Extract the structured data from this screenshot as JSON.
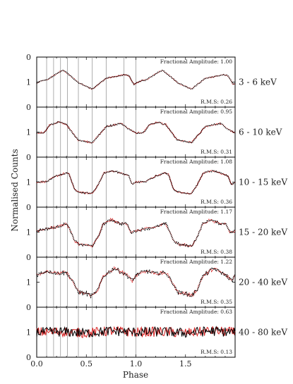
{
  "chart_data": {
    "type": "line",
    "xlabel": "Phase",
    "ylabel": "Normalised Counts",
    "xlim": [
      0,
      2
    ],
    "ylim": [
      0,
      2
    ],
    "x_ticks": [
      "0.0",
      "0.5",
      "1.0",
      "1.5"
    ],
    "y_ticks": [
      "0",
      "1"
    ],
    "reference_phases": [
      0.1,
      0.17,
      0.24,
      0.31,
      0.42,
      0.56,
      0.7,
      0.88,
      1.0
    ],
    "series_colors": {
      "black": "#000000",
      "red": "#d62020"
    },
    "panels": [
      {
        "band": "3 - 6 keV",
        "fractional_amplitude": "Fractional Amplitude: 1.00",
        "rms": "R.M.S: 0.26",
        "shape": [
          [
            0,
            0.95
          ],
          [
            0.05,
            1.05
          ],
          [
            0.1,
            1.08
          ],
          [
            0.17,
            1.25
          ],
          [
            0.24,
            1.43
          ],
          [
            0.27,
            1.47
          ],
          [
            0.3,
            1.38
          ],
          [
            0.42,
            0.98
          ],
          [
            0.56,
            0.72
          ],
          [
            0.7,
            1.15
          ],
          [
            0.88,
            1.29
          ],
          [
            0.93,
            1.25
          ],
          [
            0.98,
            0.9
          ],
          [
            1.0,
            0.95
          ]
        ],
        "noise": 0.02
      },
      {
        "band": "6 - 10 keV",
        "fractional_amplitude": "Fractional Amplitude: 0.95",
        "rms": "R.M.S: 0.31",
        "shape": [
          [
            0,
            0.95
          ],
          [
            0.08,
            1.0
          ],
          [
            0.13,
            1.28
          ],
          [
            0.22,
            1.4
          ],
          [
            0.3,
            1.3
          ],
          [
            0.36,
            0.98
          ],
          [
            0.42,
            0.68
          ],
          [
            0.56,
            0.58
          ],
          [
            0.65,
            0.98
          ],
          [
            0.7,
            1.22
          ],
          [
            0.85,
            1.35
          ],
          [
            0.92,
            1.15
          ],
          [
            1.0,
            0.95
          ]
        ],
        "noise": 0.03
      },
      {
        "band": "10 - 15 keV",
        "fractional_amplitude": "Fractional Amplitude: 1.08",
        "rms": "R.M.S: 0.36",
        "shape": [
          [
            0,
            1.0
          ],
          [
            0.1,
            1.02
          ],
          [
            0.2,
            1.25
          ],
          [
            0.3,
            1.37
          ],
          [
            0.33,
            1.3
          ],
          [
            0.38,
            0.7
          ],
          [
            0.45,
            0.58
          ],
          [
            0.56,
            0.55
          ],
          [
            0.62,
            0.9
          ],
          [
            0.68,
            1.38
          ],
          [
            0.78,
            1.45
          ],
          [
            0.87,
            1.33
          ],
          [
            0.93,
            1.25
          ],
          [
            0.96,
            0.9
          ],
          [
            1.0,
            1.0
          ]
        ],
        "noise": 0.03
      },
      {
        "band": "15 - 20 keV",
        "fractional_amplitude": "Fractional Amplitude: 1.17",
        "rms": "R.M.S: 0.38",
        "shape": [
          [
            0,
            1.05
          ],
          [
            0.07,
            1.12
          ],
          [
            0.2,
            1.2
          ],
          [
            0.3,
            1.35
          ],
          [
            0.34,
            1.05
          ],
          [
            0.38,
            0.65
          ],
          [
            0.44,
            0.5
          ],
          [
            0.56,
            0.45
          ],
          [
            0.62,
            0.8
          ],
          [
            0.67,
            1.32
          ],
          [
            0.75,
            1.5
          ],
          [
            0.85,
            1.33
          ],
          [
            0.91,
            1.35
          ],
          [
            0.95,
            0.98
          ],
          [
            1.0,
            1.05
          ]
        ],
        "noise": 0.05
      },
      {
        "band": "20 - 40 keV",
        "fractional_amplitude": "Fractional Amplitude: 1.22",
        "rms": "R.M.S: 0.35",
        "shape": [
          [
            0,
            1.3
          ],
          [
            0.1,
            1.45
          ],
          [
            0.2,
            1.35
          ],
          [
            0.3,
            1.38
          ],
          [
            0.36,
            1.05
          ],
          [
            0.42,
            0.6
          ],
          [
            0.5,
            0.55
          ],
          [
            0.56,
            0.45
          ],
          [
            0.62,
            0.72
          ],
          [
            0.67,
            1.22
          ],
          [
            0.78,
            1.55
          ],
          [
            0.88,
            1.35
          ],
          [
            0.93,
            1.2
          ],
          [
            0.97,
            1.05
          ],
          [
            1.0,
            1.3
          ]
        ],
        "noise": 0.07
      },
      {
        "band": "40 - 80 keV",
        "fractional_amplitude": "Fractional Amplitude: 0.63",
        "rms": "R.M.S: 0.13",
        "shape": [
          [
            0,
            1.0
          ],
          [
            0.25,
            1.02
          ],
          [
            0.5,
            0.97
          ],
          [
            0.75,
            1.05
          ],
          [
            1.0,
            1.0
          ]
        ],
        "noise": 0.2
      }
    ]
  }
}
